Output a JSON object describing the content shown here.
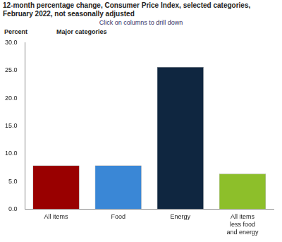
{
  "chart_data": {
    "type": "bar",
    "title": "12-month percentage change, Consumer Price Index, selected categories, February 2022, not seasonally adjusted",
    "subtitle": "Click on columns to drill down",
    "ylabel": "Percent",
    "annotations": [
      "Major categories"
    ],
    "categories": [
      "All items",
      "Food",
      "Energy",
      "All items less food and energy"
    ],
    "values": [
      7.9,
      7.9,
      25.6,
      6.4
    ],
    "colors": [
      "#990000",
      "#3a87d6",
      "#0f2640",
      "#8dbf2a"
    ],
    "ylim": [
      0,
      30
    ],
    "yticks": [
      {
        "value": 0,
        "label": "0.0"
      },
      {
        "value": 5,
        "label": "5.0"
      },
      {
        "value": 10,
        "label": "10.0"
      },
      {
        "value": 15,
        "label": "15.0"
      },
      {
        "value": 20,
        "label": "20.0"
      },
      {
        "value": 25,
        "label": "25.0"
      },
      {
        "value": 30,
        "label": "30.0"
      }
    ],
    "grid": false
  }
}
